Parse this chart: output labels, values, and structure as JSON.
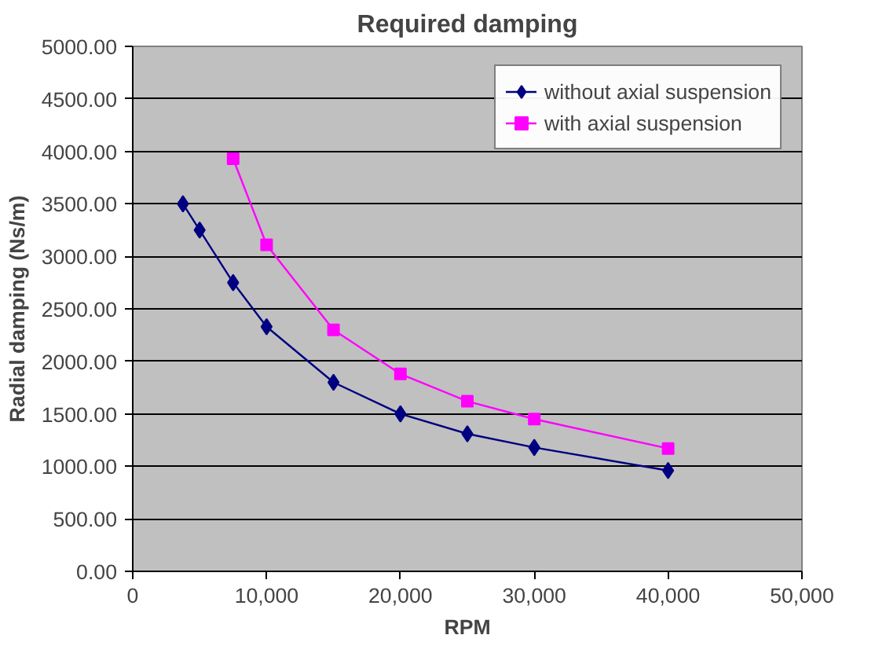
{
  "chart_data": {
    "type": "line",
    "title": "Required damping",
    "xlabel": "RPM",
    "ylabel": "Radial damping (Ns/m)",
    "xlim": [
      0,
      50000
    ],
    "ylim": [
      0,
      5000
    ],
    "xticks": [
      0,
      {
        "value": 10000,
        "label": "10,000"
      },
      {
        "value": 20000,
        "label": "20,000"
      },
      {
        "value": 30000,
        "label": "30,000"
      },
      {
        "value": 40000,
        "label": "40,000"
      },
      {
        "value": 50000,
        "label": "50,000"
      }
    ],
    "yticks": [
      {
        "value": 0,
        "label": "0.00"
      },
      {
        "value": 500,
        "label": "500.00"
      },
      {
        "value": 1000,
        "label": "1000.00"
      },
      {
        "value": 1500,
        "label": "1500.00"
      },
      {
        "value": 2000,
        "label": "2000.00"
      },
      {
        "value": 2500,
        "label": "2500.00"
      },
      {
        "value": 3000,
        "label": "3000.00"
      },
      {
        "value": 3500,
        "label": "3500.00"
      },
      {
        "value": 4000,
        "label": "4000.00"
      },
      {
        "value": 4500,
        "label": "4500.00"
      },
      {
        "value": 5000,
        "label": "5000.00"
      }
    ],
    "grid": "y",
    "legend": "top right",
    "series": [
      {
        "name": "without axial suspension",
        "color": "#000080",
        "marker": "diamond",
        "x": [
          3750,
          5000,
          7500,
          10000,
          15000,
          20000,
          25000,
          30000,
          40000
        ],
        "values": [
          3500,
          3250,
          2750,
          2330,
          1800,
          1500,
          1310,
          1180,
          960
        ]
      },
      {
        "name": "with axial suspension",
        "color": "#ff00ff",
        "marker": "square",
        "x": [
          7500,
          10000,
          15000,
          20000,
          25000,
          30000,
          40000
        ],
        "values": [
          3930,
          3110,
          2300,
          1880,
          1620,
          1450,
          1170
        ]
      }
    ]
  }
}
